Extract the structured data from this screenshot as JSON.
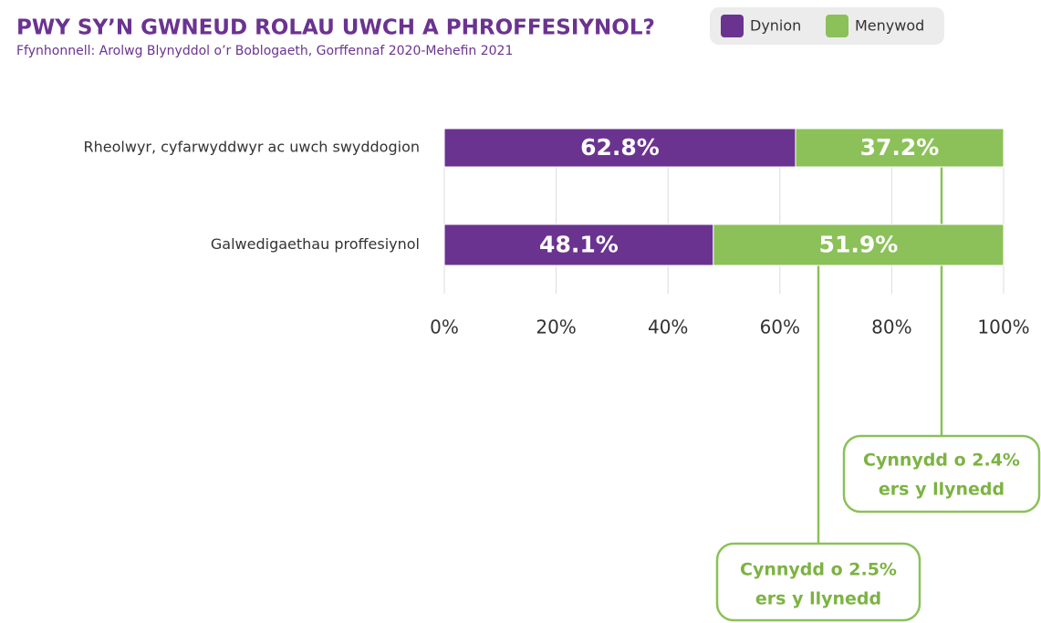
{
  "chart_data": {
    "type": "stacked-bar-horizontal",
    "title": "PWY SY’N GWNEUD ROLAU UWCH A PHROFFESIYNOL?",
    "subtitle": "Ffynhonnell: Arolwg Blynyddol o’r Boblogaeth, Gorffennaf 2020-Mehefin 2021",
    "categories": [
      "Rheolwyr, cyfarwyddwyr ac uwch swyddogion",
      "Galwedigaethau proffesiynol"
    ],
    "series": [
      {
        "name": "Dynion",
        "color": "#6b3390",
        "values": [
          62.8,
          48.1
        ],
        "value_labels": [
          "62.8%",
          "48.1%"
        ]
      },
      {
        "name": "Menywod",
        "color": "#8bc158",
        "values": [
          37.2,
          51.9
        ],
        "value_labels": [
          "37.2%",
          "51.9%"
        ]
      }
    ],
    "xlim": [
      0,
      100
    ],
    "xticks": [
      {
        "value": 0,
        "label": "0%"
      },
      {
        "value": 20,
        "label": "20%"
      },
      {
        "value": 40,
        "label": "40%"
      },
      {
        "value": 60,
        "label": "60%"
      },
      {
        "value": 80,
        "label": "80%"
      },
      {
        "value": 100,
        "label": "100%"
      }
    ],
    "grid": true,
    "annotations": [
      {
        "lines": [
          "Cynnydd o 2.4%",
          "ers y llynedd"
        ]
      },
      {
        "lines": [
          "Cynnydd o 2.5%",
          "ers y llynedd"
        ]
      }
    ]
  }
}
